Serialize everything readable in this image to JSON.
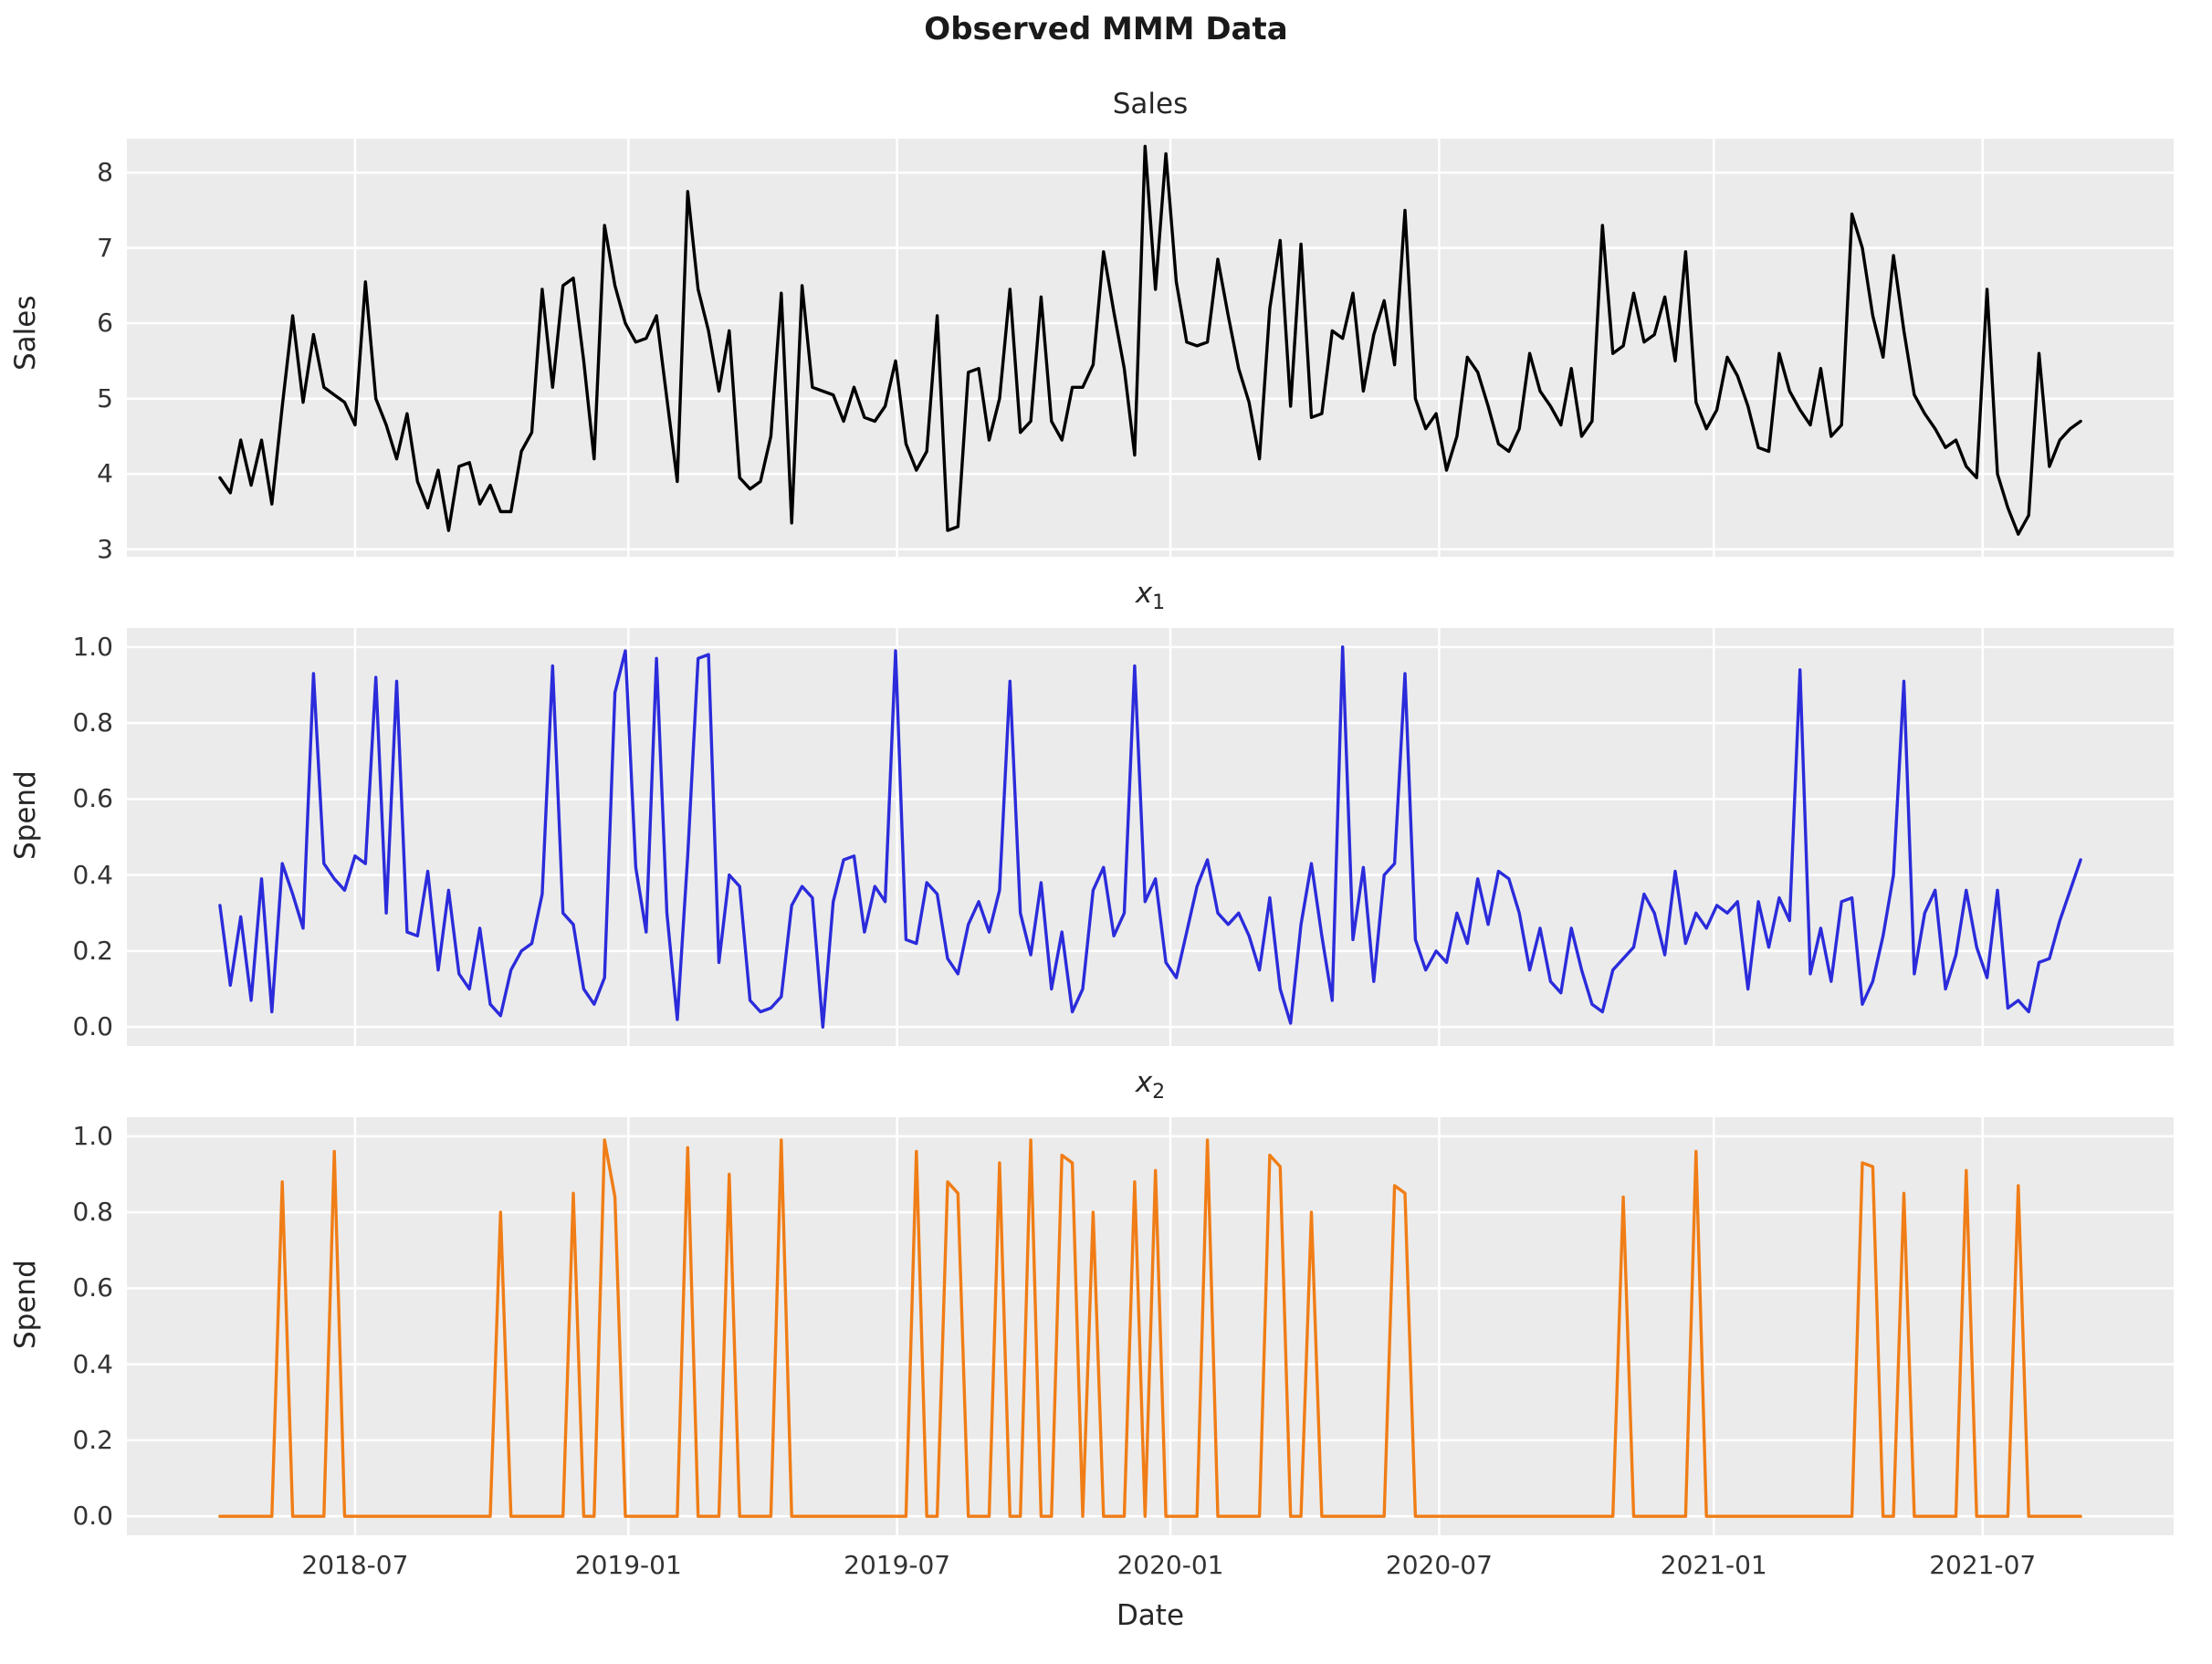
{
  "figure": {
    "suptitle": "Observed MMM Data",
    "xlabel": "Date"
  },
  "style": {
    "figure_bg": "#ffffff",
    "axes_bg": "#ebebeb",
    "grid_color": "#ffffff",
    "text_color": "#333333",
    "sales_line_color": "#000000",
    "x1_line_color": "#2b2bdb",
    "x2_line_color": "#f07d16"
  },
  "x_axis": {
    "tick_labels": [
      "2018-07",
      "2019-01",
      "2019-07",
      "2020-01",
      "2020-07",
      "2021-01",
      "2021-07"
    ],
    "tick_positions_weeks": [
      13.0,
      39.29,
      65.14,
      91.43,
      117.29,
      143.71,
      169.57
    ],
    "xlim_weeks": [
      -8.95,
      187.95
    ],
    "n_points": 180,
    "start_date": "2018-04-01",
    "frequency": "weekly"
  },
  "chart_data": [
    {
      "type": "line",
      "title": "Sales",
      "title_math": null,
      "ylabel": "Sales",
      "color_key": "sales_line_color",
      "ylim": [
        2.9,
        8.45
      ],
      "yticks": [
        3,
        4,
        5,
        6,
        7,
        8
      ],
      "ytick_labels": [
        "3",
        "4",
        "5",
        "6",
        "7",
        "8"
      ],
      "values": [
        3.95,
        3.75,
        4.45,
        3.85,
        4.45,
        3.6,
        4.9,
        6.1,
        4.95,
        5.85,
        5.15,
        5.05,
        4.95,
        4.65,
        6.55,
        5.0,
        4.65,
        4.2,
        4.8,
        3.9,
        3.55,
        4.05,
        3.25,
        4.1,
        4.15,
        3.6,
        3.85,
        3.5,
        3.5,
        4.3,
        4.55,
        6.45,
        5.15,
        6.5,
        6.6,
        5.5,
        4.2,
        7.3,
        6.5,
        6.0,
        5.75,
        5.8,
        6.1,
        5.0,
        3.9,
        7.75,
        6.45,
        5.9,
        5.1,
        5.9,
        3.95,
        3.8,
        3.9,
        4.5,
        6.4,
        3.35,
        6.5,
        5.15,
        5.1,
        5.05,
        4.7,
        5.15,
        4.75,
        4.7,
        4.9,
        5.5,
        4.4,
        4.05,
        4.3,
        6.1,
        3.25,
        3.3,
        5.35,
        5.4,
        4.45,
        5.0,
        6.45,
        4.55,
        4.7,
        6.35,
        4.7,
        4.45,
        5.15,
        5.15,
        5.45,
        6.95,
        6.15,
        5.4,
        4.25,
        8.35,
        6.45,
        8.25,
        6.55,
        5.75,
        5.7,
        5.75,
        6.85,
        6.1,
        5.4,
        4.95,
        4.2,
        6.2,
        7.1,
        4.9,
        7.05,
        4.75,
        4.8,
        5.9,
        5.8,
        6.4,
        5.1,
        5.85,
        6.3,
        5.45,
        7.5,
        5.0,
        4.6,
        4.8,
        4.05,
        4.5,
        5.55,
        5.35,
        4.9,
        4.4,
        4.3,
        4.6,
        5.6,
        5.1,
        4.9,
        4.65,
        5.4,
        4.5,
        4.7,
        7.3,
        5.6,
        5.7,
        6.4,
        5.75,
        5.85,
        6.35,
        5.5,
        6.95,
        4.95,
        4.6,
        4.85,
        5.55,
        5.3,
        4.9,
        4.35,
        4.3,
        5.6,
        5.1,
        4.85,
        4.65,
        5.4,
        4.5,
        4.65,
        7.45,
        7.0,
        6.1,
        5.55,
        6.9,
        5.9,
        5.05,
        4.8,
        4.6,
        4.35,
        4.45,
        4.1,
        3.95,
        6.45,
        4.0,
        3.55,
        3.2,
        3.45,
        5.6,
        4.1,
        4.45,
        4.6,
        4.7
      ]
    },
    {
      "type": "line",
      "title": "x_1",
      "title_math": {
        "base": "x",
        "sub": "1"
      },
      "ylabel": "Spend",
      "color_key": "x1_line_color",
      "ylim": [
        -0.05,
        1.05
      ],
      "yticks": [
        0.0,
        0.2,
        0.4,
        0.6,
        0.8,
        1.0
      ],
      "ytick_labels": [
        "0.0",
        "0.2",
        "0.4",
        "0.6",
        "0.8",
        "1.0"
      ],
      "values": [
        0.32,
        0.11,
        0.29,
        0.07,
        0.39,
        0.04,
        0.43,
        0.35,
        0.26,
        0.93,
        0.43,
        0.39,
        0.36,
        0.45,
        0.43,
        0.92,
        0.3,
        0.91,
        0.25,
        0.24,
        0.41,
        0.15,
        0.36,
        0.14,
        0.1,
        0.26,
        0.06,
        0.03,
        0.15,
        0.2,
        0.22,
        0.35,
        0.95,
        0.3,
        0.27,
        0.1,
        0.06,
        0.13,
        0.88,
        0.99,
        0.42,
        0.25,
        0.97,
        0.3,
        0.02,
        0.45,
        0.97,
        0.98,
        0.17,
        0.4,
        0.37,
        0.07,
        0.04,
        0.05,
        0.08,
        0.32,
        0.37,
        0.34,
        0.0,
        0.33,
        0.44,
        0.45,
        0.25,
        0.37,
        0.33,
        0.99,
        0.23,
        0.22,
        0.38,
        0.35,
        0.18,
        0.14,
        0.27,
        0.33,
        0.25,
        0.36,
        0.91,
        0.3,
        0.19,
        0.38,
        0.1,
        0.25,
        0.04,
        0.1,
        0.36,
        0.42,
        0.24,
        0.3,
        0.95,
        0.33,
        0.39,
        0.17,
        0.13,
        0.25,
        0.37,
        0.44,
        0.3,
        0.27,
        0.3,
        0.24,
        0.15,
        0.34,
        0.1,
        0.01,
        0.27,
        0.43,
        0.24,
        0.07,
        1.0,
        0.23,
        0.42,
        0.12,
        0.4,
        0.43,
        0.93,
        0.23,
        0.15,
        0.2,
        0.17,
        0.3,
        0.22,
        0.39,
        0.27,
        0.41,
        0.39,
        0.3,
        0.15,
        0.26,
        0.12,
        0.09,
        0.26,
        0.15,
        0.06,
        0.04,
        0.15,
        0.18,
        0.21,
        0.35,
        0.3,
        0.19,
        0.41,
        0.22,
        0.3,
        0.26,
        0.32,
        0.3,
        0.33,
        0.1,
        0.33,
        0.21,
        0.34,
        0.28,
        0.94,
        0.14,
        0.26,
        0.12,
        0.33,
        0.34,
        0.06,
        0.12,
        0.24,
        0.4,
        0.91,
        0.14,
        0.3,
        0.36,
        0.1,
        0.19,
        0.36,
        0.21,
        0.13,
        0.36,
        0.05,
        0.07,
        0.04,
        0.17,
        0.18,
        0.28,
        0.36,
        0.44
      ]
    },
    {
      "type": "line",
      "title": "x_2",
      "title_math": {
        "base": "x",
        "sub": "2"
      },
      "ylabel": "Spend",
      "color_key": "x2_line_color",
      "ylim": [
        -0.05,
        1.05
      ],
      "yticks": [
        0.0,
        0.2,
        0.4,
        0.6,
        0.8,
        1.0
      ],
      "ytick_labels": [
        "0.0",
        "0.2",
        "0.4",
        "0.6",
        "0.8",
        "1.0"
      ],
      "values": [
        0,
        0,
        0,
        0,
        0,
        0,
        0.88,
        0,
        0,
        0,
        0,
        0.96,
        0,
        0,
        0,
        0,
        0,
        0,
        0,
        0,
        0,
        0,
        0,
        0,
        0,
        0,
        0,
        0.8,
        0,
        0,
        0,
        0,
        0,
        0,
        0.85,
        0,
        0,
        0.99,
        0.84,
        0,
        0,
        0,
        0,
        0,
        0,
        0.97,
        0,
        0,
        0,
        0.9,
        0,
        0,
        0,
        0,
        0.99,
        0,
        0,
        0,
        0,
        0,
        0,
        0,
        0,
        0,
        0,
        0,
        0,
        0.96,
        0,
        0,
        0.88,
        0.85,
        0,
        0,
        0,
        0.93,
        0,
        0,
        0.99,
        0,
        0,
        0.95,
        0.93,
        0,
        0.8,
        0,
        0,
        0,
        0.88,
        0,
        0.91,
        0,
        0,
        0,
        0,
        0.99,
        0,
        0,
        0,
        0,
        0,
        0.95,
        0.92,
        0,
        0,
        0.8,
        0,
        0,
        0,
        0,
        0,
        0,
        0,
        0.87,
        0.85,
        0,
        0,
        0,
        0,
        0,
        0,
        0,
        0,
        0,
        0,
        0,
        0,
        0,
        0,
        0,
        0,
        0,
        0,
        0,
        0,
        0.84,
        0,
        0,
        0,
        0,
        0,
        0,
        0.96,
        0,
        0,
        0,
        0,
        0,
        0,
        0,
        0,
        0,
        0,
        0,
        0,
        0,
        0,
        0,
        0.93,
        0.92,
        0,
        0,
        0.85,
        0,
        0,
        0,
        0,
        0,
        0.91,
        0,
        0,
        0,
        0,
        0.87,
        0,
        0,
        0,
        0,
        0,
        0
      ]
    }
  ]
}
